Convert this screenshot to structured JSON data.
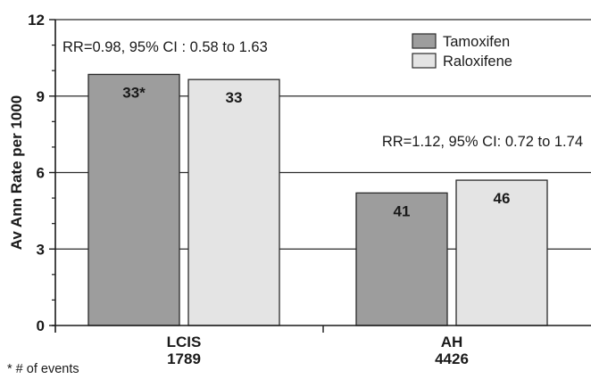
{
  "chart_data": {
    "type": "bar",
    "ylabel": "Av Ann Rate per 1000",
    "xlabel": "",
    "ylim": [
      0,
      12
    ],
    "yticks": [
      0,
      3,
      6,
      9,
      12
    ],
    "grid": true,
    "legend_position": "top-right",
    "categories": [
      {
        "name": "LCIS",
        "sub": "1789"
      },
      {
        "name": "AH",
        "sub": "4426"
      }
    ],
    "series": [
      {
        "name": "Tamoxifen",
        "color": "#9d9d9d",
        "values": [
          9.85,
          5.2
        ],
        "labels": [
          "33*",
          "41"
        ]
      },
      {
        "name": "Raloxifene",
        "color": "#e4e4e4",
        "values": [
          9.65,
          5.7
        ],
        "labels": [
          "33",
          "46"
        ]
      }
    ],
    "annotations": [
      {
        "text": "RR=0.98, 95% CI : 0.58 to 1.63",
        "category": 0
      },
      {
        "text": "RR=1.12, 95% CI: 0.72 to 1.74",
        "category": 1
      }
    ],
    "footnote": "* # of events"
  }
}
